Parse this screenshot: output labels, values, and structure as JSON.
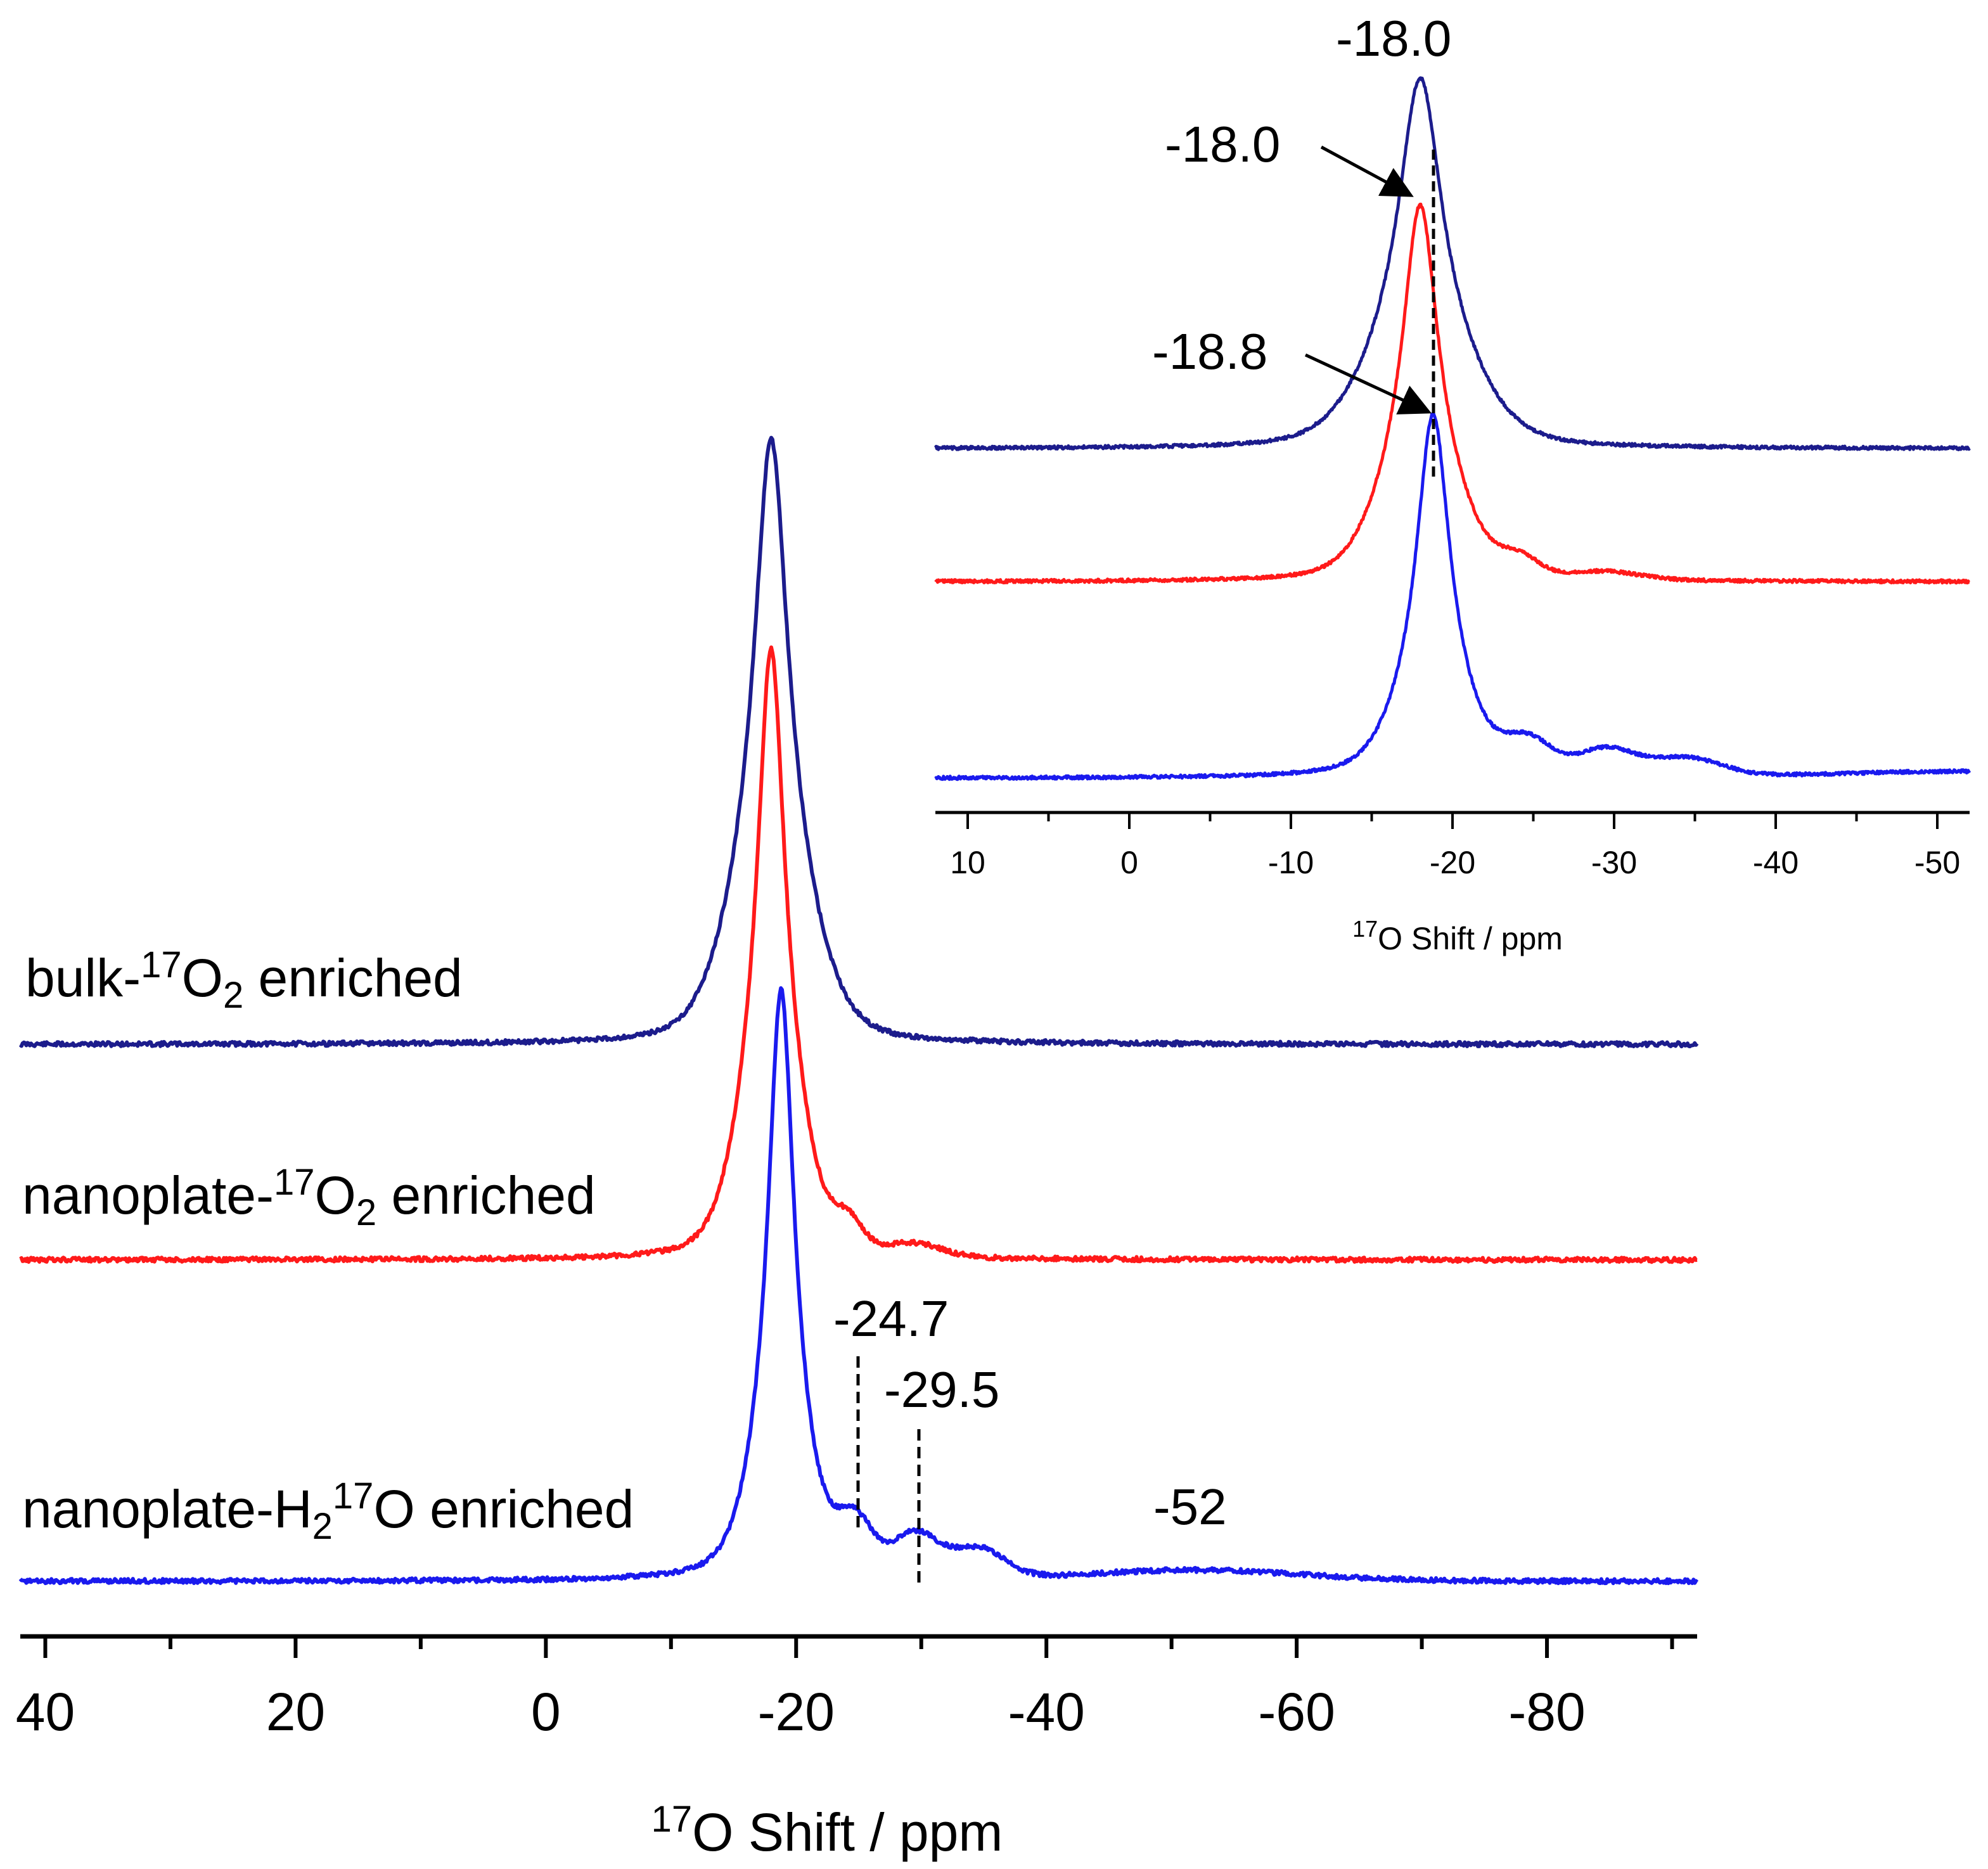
{
  "chart_data": [
    {
      "type": "line",
      "title": "",
      "xlabel": {
        "sup": "17",
        "main": "O Shift / ppm"
      },
      "ylabel": "",
      "xlim": [
        42,
        -92
      ],
      "xticks": [
        40,
        20,
        0,
        -20,
        -40,
        -60,
        -80
      ],
      "xtick_labels": [
        "40",
        "20",
        "0",
        "-20",
        "-40",
        "-60",
        "-80"
      ],
      "colors": {
        "bulk": "#1c1c8c",
        "nanoplate_o2": "#ff1a1a",
        "nanoplate_h2o": "#1a1aee"
      },
      "series": [
        {
          "key": "bulk",
          "name": "bulk-17O2 enriched",
          "label": {
            "pre": "bulk-",
            "sup": "17",
            "mid": "O",
            "sub": "2",
            "post": " enriched"
          },
          "color": "#1c1c8c",
          "peak_ppm": -18.0,
          "baseline_level": 0.0,
          "peak_height": 1.0
        },
        {
          "key": "nanoplate_o2",
          "name": "nanoplate-17O2 enriched",
          "label": {
            "pre": "nanoplate-",
            "sup": "17",
            "mid": "O",
            "sub": "2",
            "post": " enriched"
          },
          "color": "#ff1a1a",
          "peak_ppm": -18.0,
          "baseline_level": 0.0,
          "peak_height": 1.0
        },
        {
          "key": "nanoplate_h2o",
          "name": "nanoplate-H217O enriched",
          "label": {
            "pre": "nanoplate-H",
            "sub": "2",
            "sup": "17",
            "mid": "O",
            "post": " enriched"
          },
          "color": "#1a1aee",
          "peak_ppm": -18.8,
          "shoulders_ppm": [
            -24.7,
            -29.5,
            -52
          ],
          "baseline_level": 0.0,
          "peak_height": 1.0
        }
      ],
      "annotations": [
        {
          "text": "-24.7",
          "x": -24.7
        },
        {
          "text": "-29.5",
          "x": -29.5
        },
        {
          "text": "-52",
          "x": -52
        }
      ]
    },
    {
      "type": "line",
      "title": "inset",
      "xlabel": {
        "sup": "17",
        "main": "O Shift / ppm"
      },
      "xlim": [
        12,
        -52
      ],
      "xticks": [
        10,
        0,
        -10,
        -20,
        -30,
        -40,
        -50
      ],
      "xtick_labels": [
        "10",
        "0",
        "-10",
        "-20",
        "-30",
        "-40",
        "-50"
      ],
      "series_keys": [
        "bulk",
        "nanoplate_o2",
        "nanoplate_h2o"
      ],
      "annotations": [
        {
          "text": "-18.0",
          "x": -18.0,
          "target": "bulk"
        },
        {
          "text": "-18.0",
          "x": -18.0,
          "target": "nanoplate_o2"
        },
        {
          "text": "-18.8",
          "x": -18.8,
          "target": "nanoplate_h2o"
        }
      ]
    }
  ]
}
